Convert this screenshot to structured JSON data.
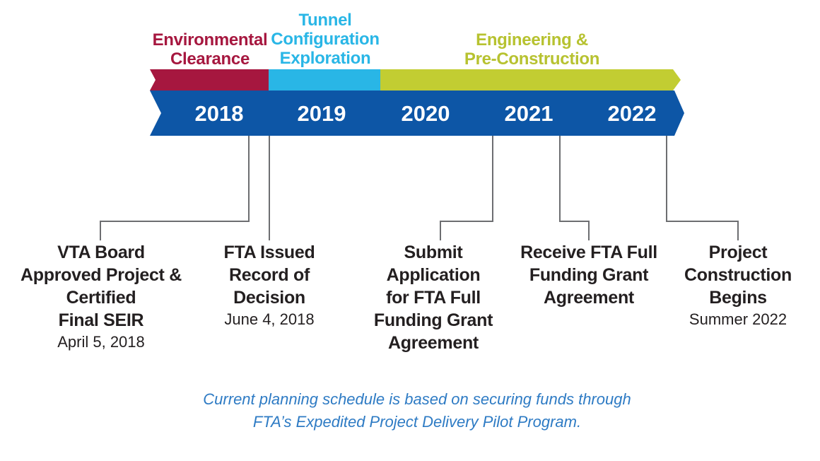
{
  "phases": [
    {
      "lines": [
        "Environmental",
        "Clearance"
      ],
      "color": "#a6173f",
      "text_color": "#a6173f"
    },
    {
      "lines": [
        "Tunnel",
        "Configuration",
        "Exploration"
      ],
      "color": "#29b6e6",
      "text_color": "#29b6e6"
    },
    {
      "lines": [
        "Engineering &",
        "Pre-Construction"
      ],
      "color": "#c2cd32",
      "text_color": "#b7c230"
    }
  ],
  "timeline_color": "#0d56a6",
  "years": [
    "2018",
    "2019",
    "2020",
    "2021",
    "2022"
  ],
  "milestones": [
    {
      "title_lines": [
        "VTA Board",
        "Approved Project &",
        "Certified",
        "Final SEIR"
      ],
      "date": "April 5, 2018"
    },
    {
      "title_lines": [
        "FTA Issued",
        "Record of",
        "Decision"
      ],
      "date": "June 4, 2018"
    },
    {
      "title_lines": [
        "Submit",
        "Application",
        "for FTA Full",
        "Funding Grant",
        "Agreement"
      ],
      "date": ""
    },
    {
      "title_lines": [
        "Receive FTA Full",
        "Funding Grant",
        "Agreement"
      ],
      "date": ""
    },
    {
      "title_lines": [
        "Project",
        "Construction",
        "Begins"
      ],
      "date": "Summer 2022"
    }
  ],
  "footnote": [
    "Current planning schedule is based on securing funds through",
    "FTA’s Expedited Project Delivery Pilot Program."
  ]
}
